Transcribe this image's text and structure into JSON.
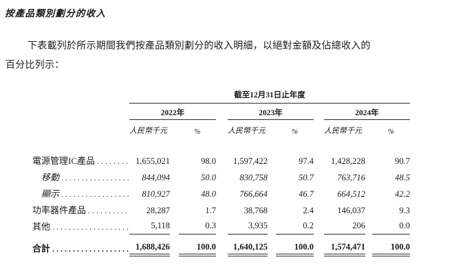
{
  "doc": {
    "title": "按產品類別劃分的收入",
    "paragraph_line1": "下表載列於所示期間我們按產品類別劃分的收入明細，以絕對金額及佔總收入的",
    "paragraph_line2": "百分比列示："
  },
  "table": {
    "period_header": "截至12月31日止年度",
    "year_headers": [
      "2022年",
      "2023年",
      "2024年"
    ],
    "unit_header": "人民幣千元",
    "pct_header": "%",
    "dot_leader": "..............................",
    "rows": [
      {
        "label": "電源管理IC產品",
        "v2022": "1,655,021",
        "p2022": "98.0",
        "v2023": "1,597,422",
        "p2023": "97.4",
        "v2024": "1,428,228",
        "p2024": "90.7"
      },
      {
        "label": "移動",
        "v2022": "844,094",
        "p2022": "50.0",
        "v2023": "830,758",
        "p2023": "50.7",
        "v2024": "763,716",
        "p2024": "48.5"
      },
      {
        "label": "顯示",
        "v2022": "810,927",
        "p2022": "48.0",
        "v2023": "766,664",
        "p2023": "46.7",
        "v2024": "664,512",
        "p2024": "42.2"
      },
      {
        "label": "功率器件產品",
        "v2022": "28,287",
        "p2022": "1.7",
        "v2023": "38,768",
        "p2023": "2.4",
        "v2024": "146,037",
        "p2024": "9.3"
      },
      {
        "label": "其他",
        "v2022": "5,118",
        "p2022": "0.3",
        "v2023": "3,935",
        "p2023": "0.2",
        "v2024": "206",
        "p2024": "0.0"
      }
    ],
    "total_row": {
      "label": "合計",
      "v2022": "1,688,426",
      "p2022": "100.0",
      "v2023": "1,640,125",
      "p2023": "100.0",
      "v2024": "1,574,471",
      "p2024": "100.0"
    }
  }
}
